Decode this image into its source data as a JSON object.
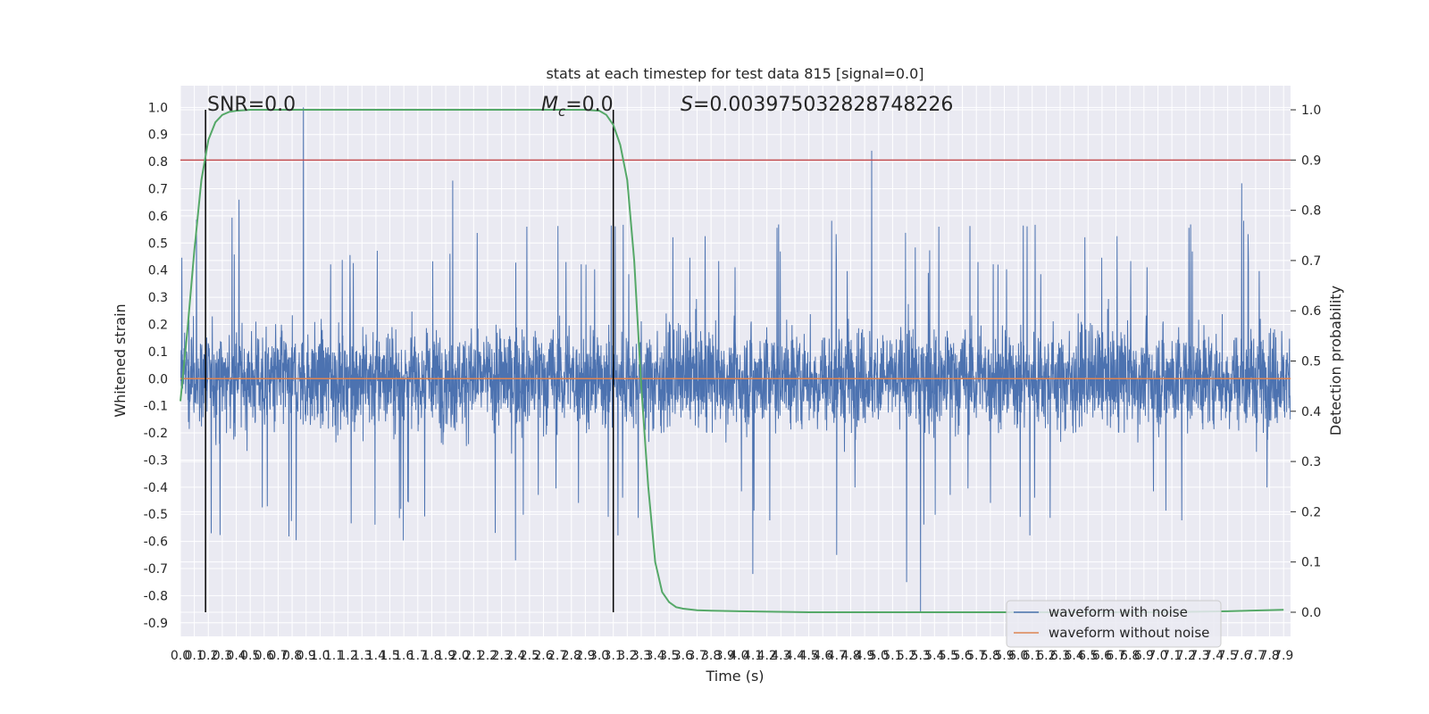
{
  "chart_data": {
    "type": "line",
    "title": "stats at each timestep for test data 815 [signal=0.0]",
    "xlabel": "Time (s)",
    "ylabel": "Whitened strain",
    "y2label": "Detection probability",
    "xlim": [
      0.0,
      7.95
    ],
    "ylim": [
      -0.95,
      1.08
    ],
    "y2lim": [
      -0.048,
      1.048
    ],
    "x_ticks": [
      "0.0",
      "0.1",
      "0.2",
      "0.3",
      "0.4",
      "0.5",
      "0.6",
      "0.7",
      "0.8",
      "0.9",
      "1.0",
      "1.1",
      "1.2",
      "1.3",
      "1.4",
      "1.5",
      "1.6",
      "1.7",
      "1.8",
      "1.9",
      "2.0",
      "2.1",
      "2.2",
      "2.3",
      "2.4",
      "2.5",
      "2.6",
      "2.7",
      "2.8",
      "2.9",
      "3.0",
      "3.1",
      "3.2",
      "3.3",
      "3.4",
      "3.5",
      "3.6",
      "3.7",
      "3.8",
      "3.9",
      "4.0",
      "4.1",
      "4.2",
      "4.3",
      "4.4",
      "4.5",
      "4.6",
      "4.7",
      "4.8",
      "4.9",
      "5.0",
      "5.1",
      "5.2",
      "5.3",
      "5.4",
      "5.5",
      "5.6",
      "5.7",
      "5.8",
      "5.9",
      "6.0",
      "6.1",
      "6.2",
      "6.3",
      "6.4",
      "6.5",
      "6.6",
      "6.7",
      "6.8",
      "6.9",
      "7.0",
      "7.1",
      "7.2",
      "7.3",
      "7.4",
      "7.5",
      "7.6",
      "7.7",
      "7.8",
      "7.9"
    ],
    "y_ticks": [
      "-0.9",
      "-0.8",
      "-0.7",
      "-0.6",
      "-0.5",
      "-0.4",
      "-0.3",
      "-0.2",
      "-0.1",
      "0.0",
      "0.1",
      "0.2",
      "0.3",
      "0.4",
      "0.5",
      "0.6",
      "0.7",
      "0.8",
      "0.9",
      "1.0"
    ],
    "y2_ticks": [
      "0.0",
      "0.1",
      "0.2",
      "0.3",
      "0.4",
      "0.5",
      "0.6",
      "0.7",
      "0.8",
      "0.9",
      "1.0"
    ],
    "annotations": {
      "snr": "SNR=0.0",
      "mc_symbol": "M",
      "mc_sub": "c",
      "mc_value": "=0.0",
      "s_symbol": "S",
      "s_value": "=0.003975032828748226"
    },
    "vertical_lines_x": [
      0.18,
      3.1
    ],
    "threshold_y2": 0.9,
    "noise_envelope": 0.25,
    "noisy_spikes": [
      {
        "x": 0.88,
        "y": 1.0
      },
      {
        "x": 4.95,
        "y": 0.84
      },
      {
        "x": 5.3,
        "y": -0.86
      },
      {
        "x": 0.22,
        "y": -0.57
      },
      {
        "x": 4.1,
        "y": -0.72
      },
      {
        "x": 5.2,
        "y": -0.75
      },
      {
        "x": 7.6,
        "y": 0.72
      },
      {
        "x": 1.95,
        "y": 0.73
      },
      {
        "x": 2.4,
        "y": -0.67
      },
      {
        "x": 0.42,
        "y": 0.66
      },
      {
        "x": 4.7,
        "y": -0.65
      }
    ],
    "detection_probability": {
      "x": [
        0.0,
        0.05,
        0.1,
        0.15,
        0.2,
        0.25,
        0.3,
        0.35,
        0.4,
        0.5,
        0.6,
        1.0,
        2.0,
        2.9,
        3.0,
        3.05,
        3.1,
        3.15,
        3.2,
        3.25,
        3.3,
        3.35,
        3.4,
        3.45,
        3.5,
        3.55,
        3.6,
        3.7,
        3.8,
        4.0,
        4.5,
        5.0,
        6.0,
        7.0,
        7.5,
        7.9
      ],
      "y": [
        0.42,
        0.56,
        0.72,
        0.86,
        0.94,
        0.975,
        0.99,
        0.996,
        0.998,
        1.0,
        1.0,
        1.0,
        1.0,
        1.0,
        0.998,
        0.99,
        0.97,
        0.93,
        0.86,
        0.7,
        0.45,
        0.25,
        0.1,
        0.04,
        0.02,
        0.01,
        0.007,
        0.004,
        0.003,
        0.002,
        0.0,
        0.0,
        0.0,
        0.0,
        0.002,
        0.005
      ]
    },
    "series": [
      {
        "name": "waveform with noise",
        "color": "#4c72b0"
      },
      {
        "name": "waveform without noise",
        "color": "#dd8452"
      }
    ],
    "colors": {
      "detection": "#55a868",
      "threshold": "#c44e52",
      "vlines": "#000000",
      "background": "#eaeaf2",
      "grid": "#ffffff"
    },
    "grid": true,
    "legend_position": "lower-right"
  }
}
